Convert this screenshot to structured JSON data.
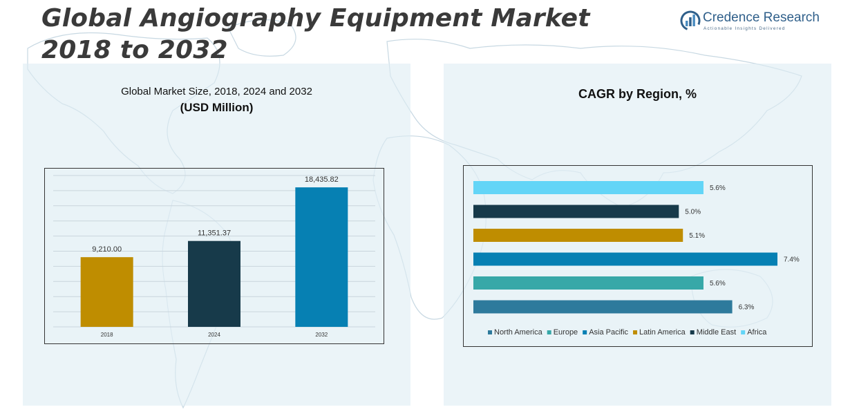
{
  "title": "Global Angiography Equipment Market 2018 to 2032",
  "brand": {
    "name": "Credence Research",
    "tagline": "Actionable Insights Delivered",
    "icon": "bar-chart-circle-logo"
  },
  "colors": {
    "panel_bg": "#deecf4",
    "c2018": "#bf8d00",
    "c2024": "#173a4a",
    "c2032": "#0680b3",
    "north_america": "#2e7a9c",
    "europe": "#37a8a8",
    "asia_pacific": "#0680b3",
    "latin_america": "#bf8d00",
    "middle_east": "#173a4a",
    "africa": "#63d5f7"
  },
  "left_chart": {
    "subtitle": "Global Market Size, 2018, 2024 and 2032",
    "unit": "(USD Million)"
  },
  "right_chart": {
    "title": "CAGR by Region, %"
  },
  "chart_data": [
    {
      "type": "bar",
      "title": "Global Market Size, 2018, 2024 and 2032 (USD Million)",
      "categories": [
        "2018",
        "2024",
        "2032"
      ],
      "values": [
        9210.0,
        11351.37,
        18435.82
      ],
      "value_labels": [
        "9,210.00",
        "11,351.37",
        "18,435.82"
      ],
      "ylim": [
        0,
        20000
      ],
      "grid": true,
      "orientation": "vertical"
    },
    {
      "type": "bar",
      "orientation": "horizontal",
      "title": "CAGR by Region, %",
      "categories": [
        "Africa",
        "Middle East",
        "Latin America",
        "Asia Pacific",
        "Europe",
        "North America"
      ],
      "values": [
        5.6,
        5.0,
        5.1,
        7.4,
        5.6,
        6.3
      ],
      "value_labels": [
        "5.6%",
        "5.0%",
        "5.1%",
        "7.4%",
        "5.6%",
        "6.3%"
      ],
      "colors": [
        "#63d5f7",
        "#173a4a",
        "#bf8d00",
        "#0680b3",
        "#37a8a8",
        "#2e7a9c"
      ],
      "xlim": [
        0,
        7.4
      ],
      "legend": [
        "North America",
        "Europe",
        "Asia Pacific",
        "Latin America",
        "Middle East",
        "Africa"
      ],
      "legend_colors": [
        "#2e7a9c",
        "#37a8a8",
        "#0680b3",
        "#bf8d00",
        "#173a4a",
        "#63d5f7"
      ],
      "legend_position": "bottom"
    }
  ]
}
